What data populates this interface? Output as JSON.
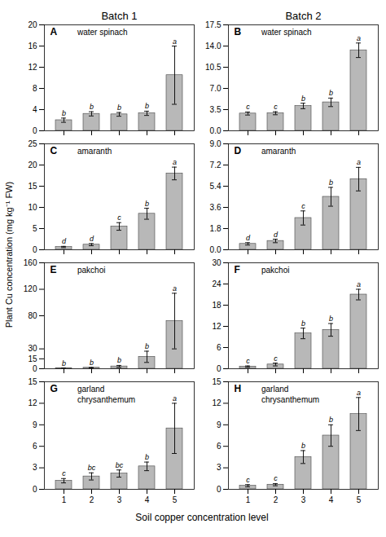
{
  "ylabel": "Plant Cu concentration (mg kg⁻¹ FW)",
  "xlabel": "Soil copper concentration level",
  "chart_data": [
    {
      "type": "bar",
      "title": "Batch 1",
      "annotations": [
        "A",
        "water spinach"
      ],
      "categories": [
        "1",
        "2",
        "3",
        "4",
        "5"
      ],
      "values": [
        2.0,
        3.2,
        3.1,
        3.3,
        10.5
      ],
      "errors": [
        0.4,
        0.4,
        0.35,
        0.4,
        5.5
      ],
      "significance": [
        "b",
        "b",
        "b",
        "b",
        "a"
      ],
      "color": "#b8b8b8",
      "ylim": [
        0,
        20
      ],
      "yticks": [
        0,
        4,
        8,
        12,
        16,
        20
      ],
      "tick_labels": "y"
    },
    {
      "type": "bar",
      "title": "Batch 2",
      "annotations": [
        "B",
        "water spinach"
      ],
      "categories": [
        "1",
        "2",
        "3",
        "4",
        "5"
      ],
      "values": [
        2.85,
        2.9,
        4.1,
        4.7,
        13.3
      ],
      "errors": [
        0.25,
        0.25,
        0.45,
        0.7,
        1.2
      ],
      "significance": [
        "c",
        "c",
        "b",
        "b",
        "a"
      ],
      "color": "#b8b8b8",
      "ylim": [
        0,
        17.5
      ],
      "yticks": [
        {
          "value": 0,
          "label": "0.0"
        },
        3.5,
        {
          "value": 7,
          "label": "7.0"
        },
        10.5,
        {
          "value": 14,
          "label": "14.0"
        },
        17.5
      ],
      "tick_labels": "y"
    },
    {
      "type": "bar",
      "annotations": [
        "C",
        "amaranth"
      ],
      "categories": [
        "1",
        "2",
        "3",
        "4",
        "5"
      ],
      "values": [
        0.65,
        1.2,
        5.5,
        8.5,
        18.0
      ],
      "errors": [
        0.15,
        0.25,
        0.9,
        1.3,
        1.5
      ],
      "significance": [
        "d",
        "d",
        "c",
        "b",
        "a"
      ],
      "color": "#b8b8b8",
      "ylim": [
        0,
        25
      ],
      "yticks": [
        0,
        5,
        10,
        15,
        20,
        25
      ],
      "tick_labels": "y"
    },
    {
      "type": "bar",
      "annotations": [
        "D",
        "amaranth"
      ],
      "categories": [
        "1",
        "2",
        "3",
        "4",
        "5"
      ],
      "values": [
        0.5,
        0.75,
        2.7,
        4.5,
        6.0
      ],
      "errors": [
        0.1,
        0.15,
        0.6,
        0.8,
        1.0
      ],
      "significance": [
        "d",
        "d",
        "c",
        "b",
        "a"
      ],
      "color": "#b8b8b8",
      "ylim": [
        0,
        9.0
      ],
      "yticks": [
        {
          "value": 0,
          "label": "0.0"
        },
        1.8,
        3.6,
        5.4,
        7.2,
        {
          "value": 9,
          "label": "9.0"
        }
      ],
      "tick_labels": "y"
    },
    {
      "type": "bar",
      "annotations": [
        "E",
        "pakchoi"
      ],
      "categories": [
        "1",
        "2",
        "3",
        "4",
        "5"
      ],
      "values": [
        0.8,
        1.5,
        3.5,
        18.0,
        72.0
      ],
      "errors": [
        0.2,
        0.4,
        1.5,
        8.5,
        42.0
      ],
      "significance": [
        "b",
        "b",
        "b",
        "b",
        "a"
      ],
      "color": "#b8b8b8",
      "ylim": [
        0,
        160
      ],
      "yticks": [
        0,
        15,
        30,
        80,
        120,
        160
      ],
      "tick_labels": "y"
    },
    {
      "type": "bar",
      "annotations": [
        "F",
        "pakchoi"
      ],
      "categories": [
        "1",
        "2",
        "3",
        "4",
        "5"
      ],
      "values": [
        0.6,
        1.2,
        10.0,
        11.0,
        21.0
      ],
      "errors": [
        0.2,
        0.4,
        1.5,
        1.8,
        1.5
      ],
      "significance": [
        "c",
        "c",
        "b",
        "b",
        "a"
      ],
      "color": "#b8b8b8",
      "ylim": [
        0,
        30
      ],
      "yticks": [
        0,
        6,
        12,
        18,
        24,
        30
      ],
      "tick_labels": "y"
    },
    {
      "type": "bar",
      "annotations": [
        "G",
        "garland",
        "chrysanthemum"
      ],
      "categories": [
        "1",
        "2",
        "3",
        "4",
        "5"
      ],
      "values": [
        1.2,
        1.8,
        2.2,
        3.2,
        8.5
      ],
      "errors": [
        0.3,
        0.5,
        0.5,
        0.6,
        3.5
      ],
      "significance": [
        "c",
        "bc",
        "bc",
        "b",
        "a"
      ],
      "color": "#b8b8b8",
      "ylim": [
        0,
        15
      ],
      "yticks": [
        0,
        3,
        6,
        9,
        12,
        15
      ]
    },
    {
      "type": "bar",
      "annotations": [
        "H",
        "garland",
        "chrysanthemum"
      ],
      "categories": [
        "1",
        "2",
        "3",
        "4",
        "5"
      ],
      "values": [
        0.5,
        0.65,
        4.5,
        7.5,
        10.5
      ],
      "errors": [
        0.15,
        0.15,
        0.9,
        1.5,
        2.3
      ],
      "significance": [
        "c",
        "c",
        "b",
        "b",
        "a"
      ],
      "color": "#b8b8b8",
      "ylim": [
        0,
        15
      ],
      "yticks": [
        0,
        3,
        6,
        9,
        12,
        15
      ]
    }
  ]
}
